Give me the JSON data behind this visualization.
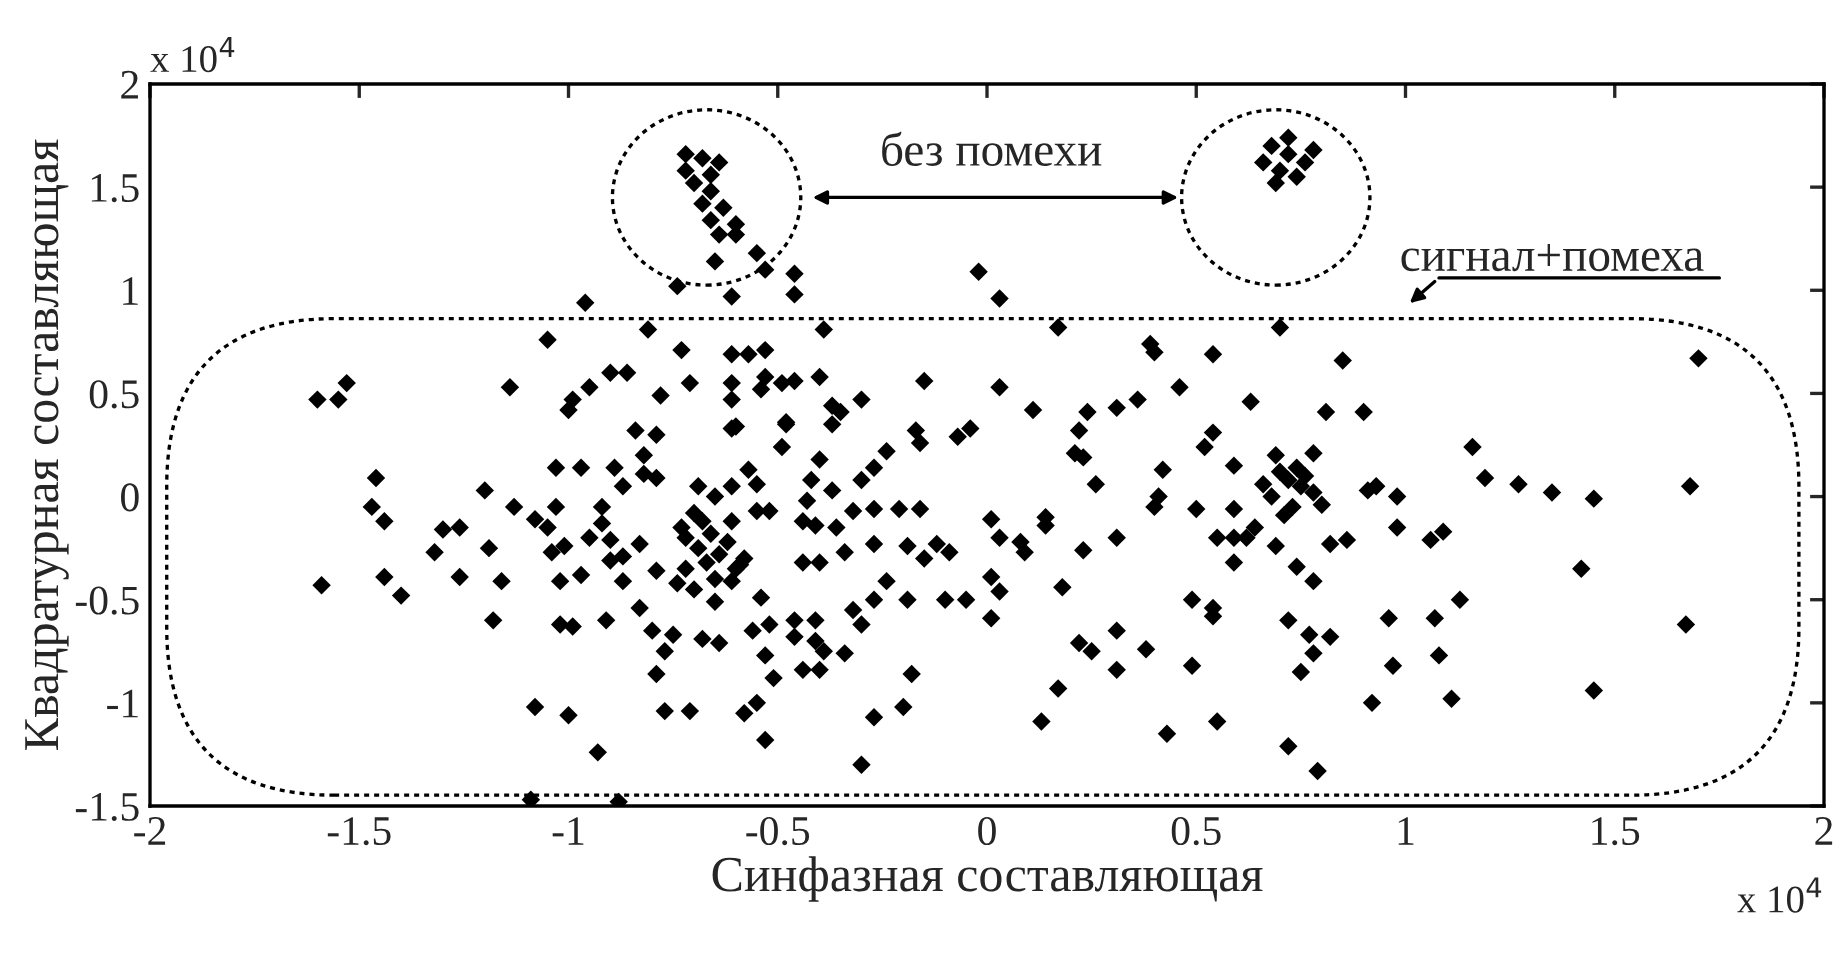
{
  "chart_data": {
    "type": "scatter",
    "xlabel": "Синфазная составляющая",
    "ylabel": "Квадратурная составляющая",
    "annotations": [
      "x 10$^{4}$",
      "x 10$^{4}$",
      "без помехи",
      "сигнал+помеха"
    ],
    "xlim": [
      -2,
      2
    ],
    "ylim": [
      -1.5,
      2
    ],
    "xticks": [
      -2,
      -1.5,
      -1,
      -0.5,
      0,
      0.5,
      1,
      1.5,
      2
    ],
    "yticks": [
      -1.5,
      -1,
      -0.5,
      0,
      0.5,
      1,
      1.5,
      2
    ],
    "grid": false,
    "marker": "diamond",
    "series": [
      {
        "color": "#000000",
        "x": [
          -0.72,
          -0.68,
          -0.64,
          -0.72,
          -0.66,
          -0.7,
          -0.66,
          -0.68,
          -0.63,
          -0.66,
          -0.6,
          -0.64,
          -0.74,
          -0.61,
          -0.55,
          -0.53,
          -0.46,
          -0.46,
          -0.6,
          -0.65,
          -0.02,
          -0.96,
          0.68,
          0.72,
          0.76,
          0.7,
          0.74,
          0.66,
          0.78,
          0.72,
          0.69,
          -1.46,
          -1.47,
          -1.44,
          -1.59,
          -1.44,
          -1.4,
          -1.2,
          -1.3,
          -1.26,
          -1.32,
          -1.26,
          -1.19,
          -1.16,
          -1.18,
          -1.13,
          -1.08,
          -1.03,
          -1.05,
          -1.03,
          -0.97,
          -1.04,
          -1.01,
          -1.02,
          -0.97,
          -1.02,
          -0.99,
          -1.08,
          -1.0,
          -0.93,
          -0.95,
          -0.92,
          -0.92,
          -0.89,
          -0.87,
          -0.9,
          -0.9,
          -0.87,
          -0.83,
          -0.87,
          -0.91,
          -0.83,
          -0.82,
          -0.82,
          -0.79,
          -0.84,
          -0.79,
          -0.79,
          -0.8,
          -0.75,
          -0.77,
          -0.79,
          -0.77,
          -0.71,
          -0.69,
          -0.65,
          -0.68,
          -0.64,
          -0.65,
          -0.7,
          -0.68,
          -0.66,
          -0.72,
          -0.69,
          -0.64,
          -0.67,
          -0.72,
          -0.62,
          -0.6,
          -0.74,
          -0.7,
          -0.65,
          -0.58,
          -0.73,
          -0.61,
          -0.61,
          -0.59,
          -0.61,
          -0.61,
          -0.57,
          -0.55,
          -0.55,
          -0.52,
          -0.49,
          -0.48,
          -0.54,
          -0.56,
          -0.52,
          -0.53,
          -0.51,
          -0.58,
          -0.55,
          -0.53,
          -0.44,
          -0.44,
          -0.4,
          -0.42,
          -0.4,
          -0.43,
          -0.41,
          -0.37,
          -0.37,
          -0.46,
          -0.46,
          -0.41,
          -0.41,
          -0.39,
          -0.44,
          -0.4,
          -0.34,
          -0.36,
          -0.32,
          -0.34,
          -0.3,
          -0.27,
          -0.24,
          -0.27,
          -0.27,
          -0.32,
          -0.27,
          -0.3,
          -0.24,
          -0.27,
          -0.2,
          -0.3,
          -0.18,
          -0.21,
          -0.16,
          -0.19,
          -0.15,
          -0.12,
          -0.09,
          -0.19,
          -0.1,
          -0.05,
          -0.17,
          -0.16,
          -0.07,
          -0.04,
          -1.09,
          -0.88,
          0.22,
          0.21,
          0.23,
          0.26,
          0.01,
          0.03,
          0.08,
          0.09,
          0.14,
          0.14,
          0.01,
          0.03,
          0.01,
          0.23,
          0.18,
          0.31,
          0.22,
          0.25,
          0.31,
          0.31,
          0.17,
          0.13,
          0.38,
          0.42,
          0.4,
          0.41,
          0.5,
          0.49,
          0.54,
          0.54,
          0.49,
          0.43,
          0.55,
          0.54,
          0.52,
          0.59,
          0.59,
          0.55,
          0.59,
          0.62,
          0.64,
          0.59,
          0.69,
          0.69,
          0.78,
          0.72,
          0.7,
          0.75,
          0.68,
          0.73,
          0.78,
          0.71,
          0.76,
          0.66,
          0.8,
          0.74,
          0.74,
          0.78,
          0.72,
          0.77,
          0.78,
          0.75,
          0.82,
          0.72,
          0.79,
          0.82,
          0.86,
          0.91,
          0.93,
          0.98,
          0.98,
          1.06,
          1.09,
          0.96,
          0.97,
          1.07,
          1.08,
          1.13,
          0.92,
          1.11,
          1.16,
          1.19,
          1.27,
          1.35,
          1.45,
          1.42,
          1.45,
          1.68,
          1.67,
          0.03,
          0.17,
          0.39,
          0.4,
          0.54,
          0.7,
          0.85,
          0.03,
          0.11,
          0.24,
          0.31,
          0.36,
          0.46,
          0.63,
          0.81,
          0.9,
          1.7,
          -1.6,
          -1.55,
          -1.53,
          -1.14,
          -1.05,
          -0.99,
          -1.0,
          -0.95,
          -0.9,
          -0.86,
          -0.81,
          -0.78,
          -0.73,
          -0.71,
          -0.61,
          -0.57,
          -0.53,
          -0.61,
          -0.61,
          -0.53,
          -0.54,
          -0.49,
          -0.46,
          -0.4,
          -0.39,
          -0.37,
          -0.35,
          -0.3,
          -0.6,
          -0.48,
          -0.15
        ],
        "values": [
          1.66,
          1.64,
          1.62,
          1.58,
          1.56,
          1.52,
          1.48,
          1.42,
          1.4,
          1.34,
          1.32,
          1.27,
          1.02,
          0.97,
          1.18,
          1.1,
          1.08,
          0.98,
          1.27,
          1.14,
          1.09,
          0.94,
          1.7,
          1.66,
          1.62,
          1.58,
          1.55,
          1.62,
          1.68,
          1.74,
          1.52,
          0.09,
          -0.05,
          -0.12,
          -0.43,
          -0.39,
          -0.48,
          0.03,
          -0.16,
          -0.15,
          -0.27,
          -0.39,
          -0.25,
          -0.41,
          -0.6,
          -0.05,
          -0.11,
          -0.05,
          -0.15,
          0.14,
          0.14,
          -0.27,
          -0.24,
          -0.41,
          -0.38,
          -0.62,
          -0.63,
          -1.02,
          -1.06,
          -1.24,
          -0.2,
          -0.05,
          -0.13,
          0.14,
          0.05,
          -0.21,
          -0.31,
          -0.29,
          -0.23,
          -0.41,
          -0.6,
          -0.54,
          0.2,
          0.11,
          0.09,
          0.32,
          0.3,
          -0.36,
          -0.65,
          -0.67,
          -0.75,
          -0.86,
          -1.04,
          -1.04,
          0.05,
          0.0,
          -0.69,
          -0.71,
          -0.51,
          -0.08,
          -0.12,
          -0.18,
          -0.2,
          -0.25,
          -0.28,
          -0.32,
          -0.35,
          -0.22,
          -0.35,
          -0.42,
          -0.45,
          -0.4,
          -0.3,
          -0.15,
          0.05,
          -0.12,
          -0.33,
          -0.41,
          0.33,
          0.13,
          0.06,
          -0.07,
          -0.07,
          0.24,
          0.35,
          -0.49,
          -0.65,
          -0.62,
          -0.77,
          -0.88,
          -1.05,
          -1.0,
          -1.18,
          -0.12,
          -0.32,
          -0.32,
          0.08,
          0.18,
          -0.02,
          -0.14,
          0.03,
          0.35,
          -0.6,
          -0.68,
          -0.6,
          -0.7,
          -0.75,
          -0.84,
          -0.84,
          -0.76,
          -0.15,
          -0.07,
          -0.27,
          0.08,
          0.14,
          0.22,
          -0.06,
          -0.23,
          -0.55,
          -0.5,
          -0.62,
          -0.41,
          -1.07,
          -1.02,
          -1.3,
          -0.86,
          -0.06,
          -0.06,
          -0.24,
          -0.3,
          -0.23,
          -0.27,
          -0.5,
          -0.5,
          -0.5,
          0.32,
          0.26,
          0.29,
          0.33,
          -1.47,
          -1.48,
          0.32,
          0.21,
          0.19,
          0.06,
          -0.11,
          -0.2,
          -0.22,
          -0.27,
          -0.1,
          -0.14,
          -0.39,
          -0.46,
          -0.59,
          -0.26,
          -0.44,
          -0.2,
          -0.71,
          -0.75,
          -0.65,
          -0.84,
          -0.93,
          -1.09,
          -0.74,
          0.13,
          -0.05,
          0.0,
          -0.06,
          -0.5,
          -0.54,
          -0.58,
          -0.82,
          -1.15,
          -1.09,
          0.31,
          0.24,
          0.15,
          -0.06,
          -0.2,
          -0.2,
          -0.2,
          -0.15,
          -0.32,
          -0.24,
          0.2,
          0.21,
          0.08,
          0.12,
          0.05,
          0.0,
          -0.05,
          0.02,
          -0.09,
          0.1,
          0.06,
          -0.04,
          0.14,
          -0.34,
          -0.41,
          -0.6,
          -0.67,
          -0.76,
          -0.85,
          -0.68,
          -1.21,
          -1.33,
          -0.23,
          -0.21,
          0.03,
          0.05,
          0.0,
          -0.15,
          -0.21,
          -0.17,
          -0.59,
          -0.82,
          -0.59,
          -0.77,
          -0.5,
          -1.0,
          -0.98,
          0.24,
          0.09,
          0.06,
          0.02,
          -0.01,
          -0.35,
          -0.94,
          0.05,
          -0.62,
          0.96,
          0.82,
          0.74,
          0.7,
          0.69,
          0.82,
          0.66,
          0.53,
          0.42,
          0.41,
          0.43,
          0.47,
          0.53,
          0.46,
          0.41,
          0.41,
          0.67,
          0.47,
          0.47,
          0.55,
          0.53,
          0.76,
          0.47,
          0.42,
          0.53,
          0.6,
          0.6,
          0.81,
          0.49,
          0.71,
          0.55,
          0.69,
          0.69,
          0.71,
          0.55,
          0.47,
          0.58,
          0.52,
          0.55,
          0.56,
          0.58,
          0.81,
          0.44,
          0.41,
          0.47,
          0.34,
          0.36,
          0.56
        ]
      }
    ]
  }
}
